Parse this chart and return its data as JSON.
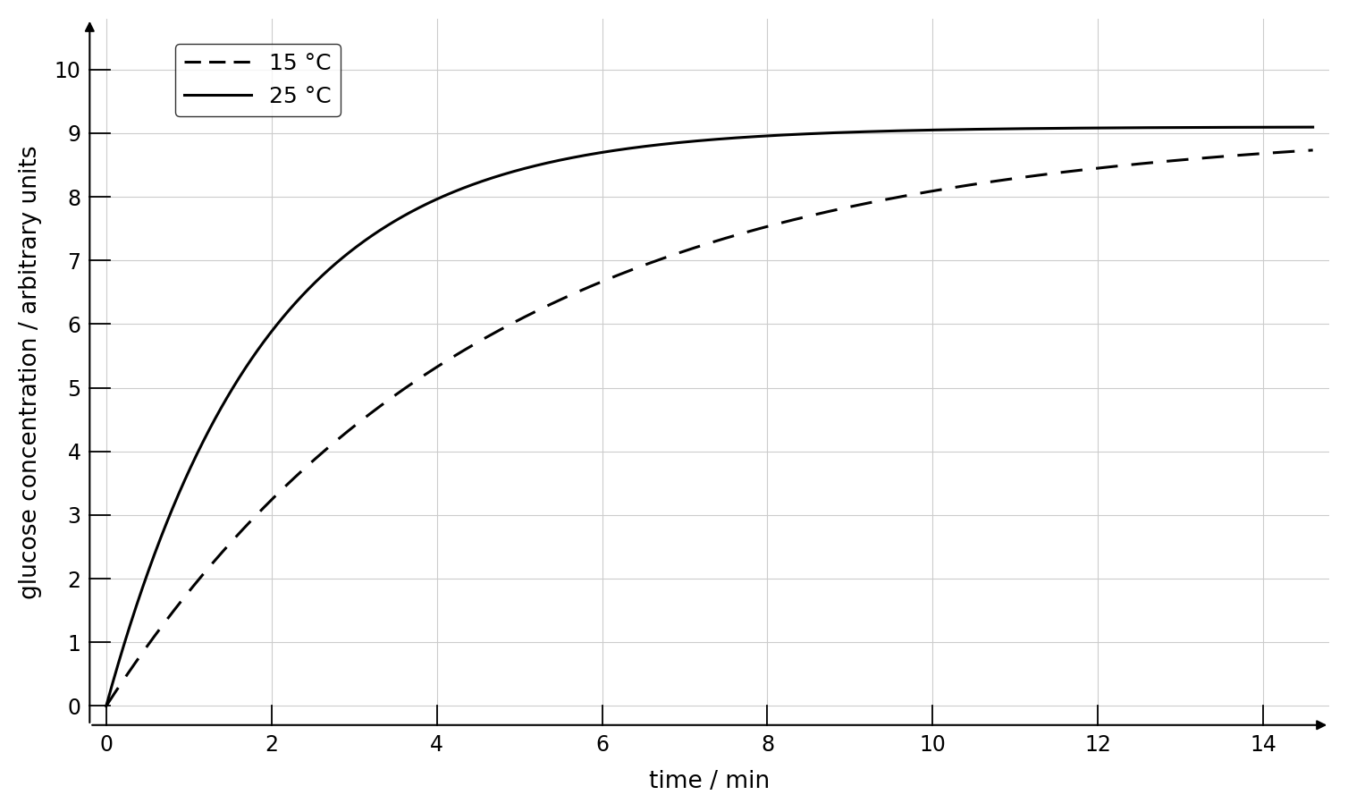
{
  "title": "",
  "xlabel": "time / min",
  "ylabel": "glucose concentration / arbitrary units",
  "xlim_data": [
    -0.2,
    14.8
  ],
  "ylim_data": [
    -0.3,
    10.8
  ],
  "xlim_arrow": 14.8,
  "ylim_arrow": 10.8,
  "xticks": [
    0,
    2,
    4,
    6,
    8,
    10,
    12,
    14
  ],
  "yticks": [
    0,
    1,
    2,
    3,
    4,
    5,
    6,
    7,
    8,
    9,
    10
  ],
  "curve_25C": {
    "label": "25 °C",
    "linestyle": "solid",
    "color": "black",
    "linewidth": 2.2,
    "asymptote": 9.1,
    "rate": 0.52
  },
  "curve_15C": {
    "label": "15 °C",
    "linestyle": "dashed",
    "color": "black",
    "linewidth": 2.2,
    "asymptote": 9.1,
    "rate": 0.22
  },
  "grid_color": "#cccccc",
  "background_color": "#ffffff",
  "font_size": 18,
  "tick_font_size": 17,
  "label_font_size": 19,
  "legend_fontsize": 18
}
